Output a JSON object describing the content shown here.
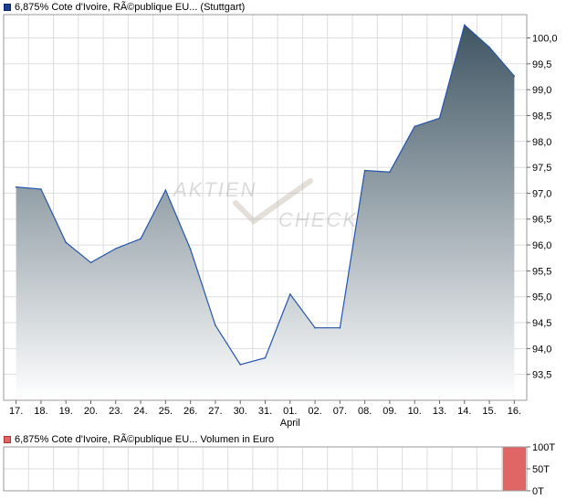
{
  "legend": {
    "price_label": "6,875% Cote d'Ivoire, RÃ©publique EU...  (Stuttgart)",
    "volume_label": "6,875% Cote d'Ivoire, RÃ©publique EU...  Volumen in Euro"
  },
  "watermark": {
    "line1": "AKTIEN",
    "line2": "CHECK"
  },
  "colors": {
    "line": "#2255aa",
    "area_top": "#3f5563",
    "area_bottom": "#ffffff",
    "volume_bar": "#e06666",
    "grid": "#dddddd"
  },
  "chart_data": [
    {
      "type": "area",
      "categories": [
        "17.",
        "18.",
        "19.",
        "20.",
        "23.",
        "24.",
        "25.",
        "26.",
        "27.",
        "30.",
        "31.",
        "01.",
        "02.",
        "07.",
        "08.",
        "09.",
        "10.",
        "13.",
        "14.",
        "15.",
        "16."
      ],
      "x_sublabels": {
        "01.": "April"
      },
      "series": [
        {
          "values": [
            97.12,
            97.08,
            96.05,
            95.66,
            95.93,
            96.12,
            97.06,
            95.92,
            94.45,
            93.69,
            93.82,
            95.05,
            94.4,
            94.4,
            97.44,
            97.41,
            98.29,
            98.45,
            100.25,
            99.82,
            99.26
          ]
        }
      ],
      "y_ticks": [
        "93,5",
        "94,0",
        "94,5",
        "95,0",
        "95,5",
        "96,0",
        "96,5",
        "97,0",
        "97,5",
        "98,0",
        "98,5",
        "99,0",
        "99,5",
        "100,0"
      ],
      "ylim": [
        93.0,
        100.45
      ],
      "grid": true
    },
    {
      "type": "bar",
      "categories": [
        "17.",
        "18.",
        "19.",
        "20.",
        "23.",
        "24.",
        "25.",
        "26.",
        "27.",
        "30.",
        "31.",
        "01.",
        "02.",
        "07.",
        "08.",
        "09.",
        "10.",
        "13.",
        "14.",
        "15.",
        "16."
      ],
      "series": [
        {
          "values": [
            0,
            0,
            0,
            0,
            0,
            0,
            0,
            0,
            0,
            0,
            0,
            0,
            0,
            0,
            0,
            0,
            0,
            0,
            0,
            0,
            100
          ]
        }
      ],
      "y_ticks": [
        "0T",
        "50T",
        "100T"
      ],
      "ylim": [
        0,
        100
      ],
      "grid": true
    }
  ]
}
